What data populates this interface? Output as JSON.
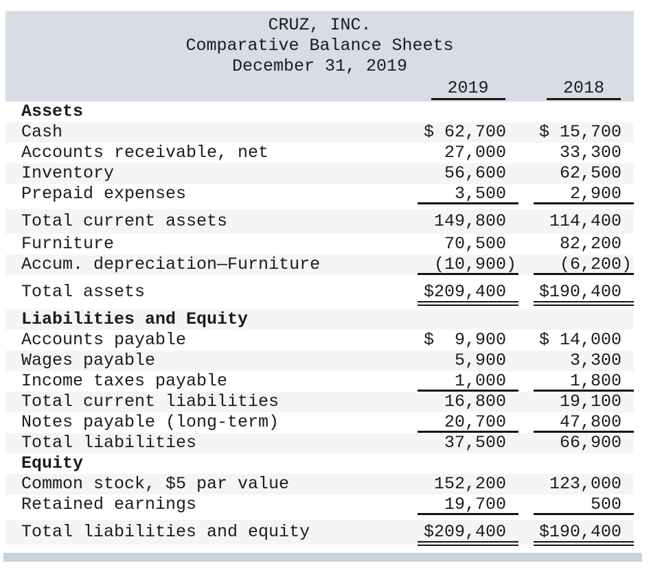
{
  "header": {
    "company": "CRUZ, INC.",
    "title": "Comparative Balance Sheets",
    "date": "December 31, 2019",
    "columns": [
      "2019",
      "2018"
    ]
  },
  "rows": [
    {
      "label": "Assets",
      "type": "section"
    },
    {
      "label": "Cash",
      "values": [
        "$ 62,700",
        "$ 15,700"
      ]
    },
    {
      "label": "Accounts receivable, net",
      "values": [
        "27,000",
        "33,300"
      ]
    },
    {
      "label": "Inventory",
      "values": [
        "56,600",
        "62,500"
      ]
    },
    {
      "label": "Prepaid expenses",
      "values": [
        "3,500",
        "2,900"
      ],
      "rule": "single"
    },
    {
      "label": "Total current assets",
      "values": [
        "149,800",
        "114,400"
      ],
      "gap": true,
      "subtotal": true
    },
    {
      "label": "Furniture",
      "values": [
        "70,500",
        "82,200"
      ]
    },
    {
      "label": "Accum. depreciation—Furniture",
      "values": [
        "(10,900)",
        "(6,200)"
      ],
      "rule": "single"
    },
    {
      "label": "Total assets",
      "values": [
        "$209,400",
        "$190,400"
      ],
      "rule": "double",
      "gap": true,
      "subtotal": true
    },
    {
      "label": "Liabilities and Equity",
      "type": "section",
      "gap": true
    },
    {
      "label": "Accounts payable",
      "values": [
        "$  9,900",
        "$ 14,000"
      ]
    },
    {
      "label": "Wages payable",
      "values": [
        "5,900",
        "3,300"
      ]
    },
    {
      "label": "Income taxes payable",
      "values": [
        "1,000",
        "1,800"
      ],
      "rule": "single"
    },
    {
      "label": "Total current liabilities",
      "values": [
        "16,800",
        "19,100"
      ]
    },
    {
      "label": "Notes payable (long-term)",
      "values": [
        "20,700",
        "47,800"
      ],
      "rule": "single"
    },
    {
      "label": "Total liabilities",
      "values": [
        "37,500",
        "66,900"
      ]
    },
    {
      "label": "Equity",
      "type": "section"
    },
    {
      "label": "Common stock, $5 par value",
      "values": [
        "152,200",
        "123,000"
      ]
    },
    {
      "label": "Retained earnings",
      "values": [
        "19,700",
        "500"
      ],
      "rule": "single"
    },
    {
      "label": "Total liabilities and equity",
      "values": [
        "$209,400",
        "$190,400"
      ],
      "rule": "double",
      "gap": true,
      "subtotal": true
    }
  ],
  "colors": {
    "header_bg": "#d8dce5",
    "row_shade": "#f5f5f6",
    "bottom_bar": "#cbd2dd",
    "rule": "#131313",
    "text": "#1b1b1b"
  }
}
